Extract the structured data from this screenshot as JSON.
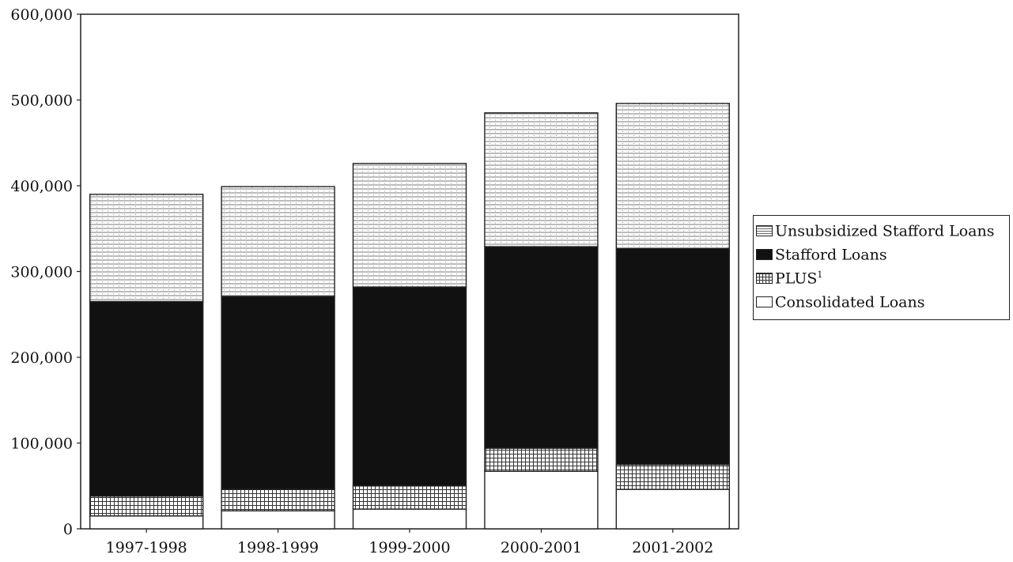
{
  "chart_data": {
    "type": "bar",
    "stacked": true,
    "categories": [
      "1997-1998",
      "1998-1999",
      "1999-2000",
      "2000-2001",
      "2001-2002"
    ],
    "series": [
      {
        "name": "Consolidated Loans",
        "values": [
          15000,
          21000,
          23000,
          67000,
          46000
        ],
        "pattern": "none",
        "color": "#ffffff"
      },
      {
        "name": "PLUS",
        "footnote": "1",
        "values": [
          23000,
          25000,
          27000,
          27000,
          29000
        ],
        "pattern": "grid",
        "color": "#ffffff"
      },
      {
        "name": "Stafford Loans",
        "values": [
          227000,
          225000,
          232000,
          235000,
          252000
        ],
        "pattern": "solid",
        "color": "#111111"
      },
      {
        "name": "Unsubsidized Stafford Loans",
        "values": [
          125000,
          128000,
          144000,
          156000,
          169000
        ],
        "pattern": "hlines",
        "color": "#ffffff"
      }
    ],
    "ylim": [
      0,
      600000
    ],
    "yticks": [
      "0",
      "100,000",
      "200,000",
      "300,000",
      "400,000",
      "500,000",
      "600,000"
    ],
    "ytick_values": [
      0,
      100000,
      200000,
      300000,
      400000,
      500000,
      600000
    ],
    "legend_position": "right",
    "grid": false
  },
  "legend": [
    {
      "label": "Unsubsidized Stafford Loans",
      "sup": "",
      "swatch": "sw-unsub"
    },
    {
      "label": "Stafford Loans",
      "sup": "",
      "swatch": "sw-stafford"
    },
    {
      "label": "PLUS",
      "sup": "1",
      "swatch": "sw-plus"
    },
    {
      "label": "Consolidated Loans",
      "sup": "",
      "swatch": "sw-consol"
    }
  ]
}
